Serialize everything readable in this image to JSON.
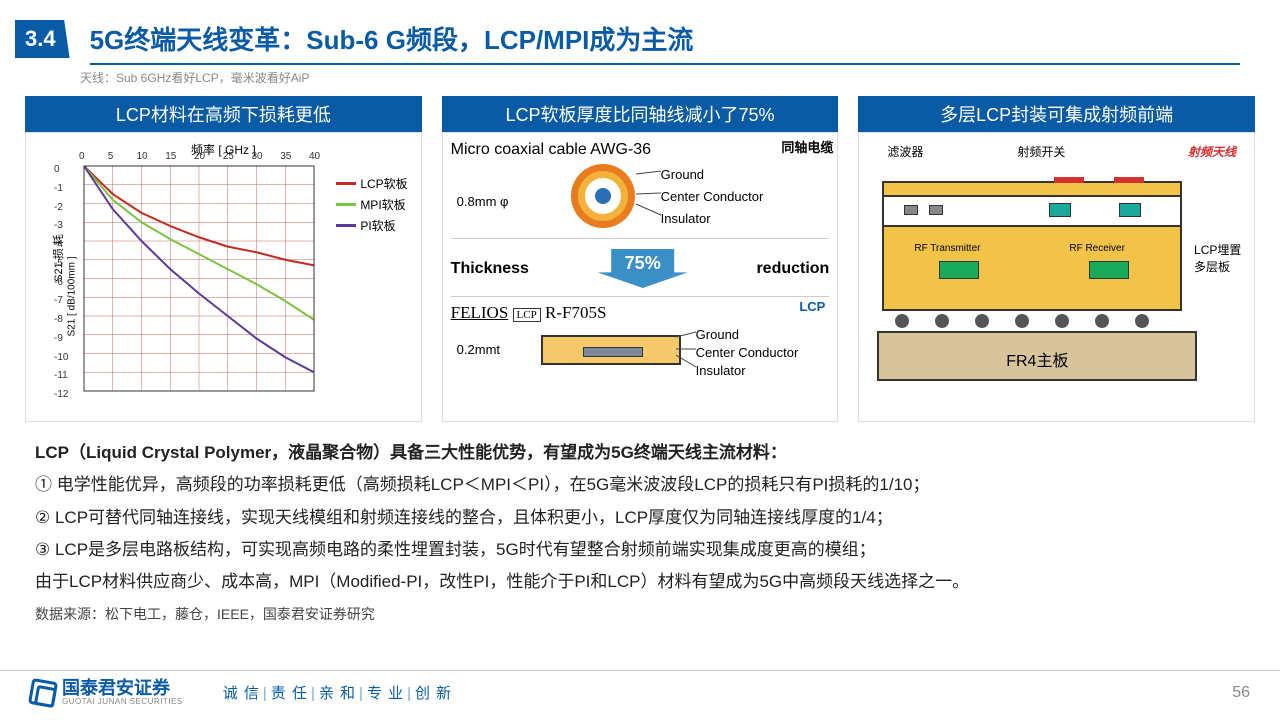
{
  "header": {
    "section_number": "3.4",
    "title": "5G终端天线变革：Sub-6 G频段，LCP/MPI成为主流",
    "subtitle": "天线：Sub 6GHz看好LCP，毫米波看好AiP"
  },
  "panels": {
    "left": {
      "heading": "LCP材料在高频下损耗更低",
      "chart": {
        "type": "line",
        "x_label": "频率  [ GHz ]",
        "y_label": "S21 损 耗",
        "y_unit": "S21 [ dB/100mm ]",
        "xlim": [
          0,
          40
        ],
        "xtick_step": 5,
        "ylim": [
          -12,
          0
        ],
        "ytick_step": 1,
        "grid_color": "#c96a6a",
        "background": "#ffffff",
        "series": [
          {
            "name": "LCP软板",
            "color": "#c4281e",
            "width": 2,
            "points": [
              [
                0,
                0
              ],
              [
                5,
                -1.5
              ],
              [
                10,
                -2.5
              ],
              [
                15,
                -3.2
              ],
              [
                20,
                -3.8
              ],
              [
                25,
                -4.3
              ],
              [
                30,
                -4.6
              ],
              [
                35,
                -5.0
              ],
              [
                40,
                -5.3
              ]
            ]
          },
          {
            "name": "MPI软板",
            "color": "#7cc243",
            "width": 2,
            "points": [
              [
                0,
                0
              ],
              [
                5,
                -1.8
              ],
              [
                10,
                -3.0
              ],
              [
                15,
                -3.9
              ],
              [
                20,
                -4.7
              ],
              [
                25,
                -5.5
              ],
              [
                30,
                -6.3
              ],
              [
                35,
                -7.2
              ],
              [
                40,
                -8.2
              ]
            ]
          },
          {
            "name": "PI软板",
            "color": "#5b3a9b",
            "width": 2,
            "points": [
              [
                0,
                0
              ],
              [
                5,
                -2.3
              ],
              [
                10,
                -4.0
              ],
              [
                15,
                -5.5
              ],
              [
                20,
                -6.8
              ],
              [
                25,
                -8.0
              ],
              [
                30,
                -9.2
              ],
              [
                35,
                -10.2
              ],
              [
                40,
                -11.0
              ]
            ]
          }
        ]
      }
    },
    "mid": {
      "heading": "LCP软板厚度比同轴线减小了75%",
      "top_title": "Micro coaxial cable AWG-36",
      "top_badge": "同轴电缆",
      "dim_top": "0.8mm φ",
      "labels_top": [
        "Ground",
        "Center Conductor",
        "Insulator"
      ],
      "coax_colors": {
        "outer": "#e97c1e",
        "ring": "#f3b23a",
        "insul": "#ffffff",
        "core": "#2a6fb5"
      },
      "thickness_word": "Thickness",
      "reduction_word": "reduction",
      "percent": "75%",
      "arrow_color": "#3a8fc7",
      "brand": "FELIOS",
      "brand_tag": "LCP",
      "model": "R-F705S",
      "bottom_badge": "LCP",
      "dim_bottom": "0.2mmt",
      "labels_bottom": [
        "Ground",
        "Center Conductor",
        "Insulator"
      ],
      "flat_colors": {
        "body": "#f5c869",
        "core": "#7a8a99"
      }
    },
    "right": {
      "heading": "多层LCP封装可集成射频前端",
      "labels": {
        "filter": "滤波器",
        "switch": "射频开关",
        "antenna": "射频天线",
        "tx": "RF Transmitter",
        "rx": "RF Receiver",
        "lcp": "LCP埋置多层板",
        "fr4": "FR4主板"
      },
      "colors": {
        "lcp_board": "#f1c448",
        "chip_green": "#1aa85a",
        "chip_teal": "#1aa89a",
        "fr4": "#d8c49a",
        "border": "#222",
        "ant": "#d62f2f"
      }
    }
  },
  "body": {
    "lead": "LCP（Liquid Crystal Polymer，液晶聚合物）具备三大性能优势，有望成为5G终端天线主流材料：",
    "l1": "① 电学性能优异，高频段的功率损耗更低（高频损耗LCP＜MPI＜PI），在5G毫米波波段LCP的损耗只有PI损耗的1/10；",
    "l2": "② LCP可替代同轴连接线，实现天线模组和射频连接线的整合，且体积更小，LCP厚度仅为同轴连接线厚度的1/4；",
    "l3": "③ LCP是多层电路板结构，可实现高频电路的柔性埋置封装，5G时代有望整合射频前端实现集成度更高的模组；",
    "l4": "由于LCP材料供应商少、成本高，MPI（Modified-PI，改性PI，性能介于PI和LCP）材料有望成为5G中高频段天线选择之一。"
  },
  "source": "数据来源：松下电工，藤仓，IEEE，国泰君安证券研究",
  "footer": {
    "company_cn": "国泰君安证券",
    "company_en": "GUOTAI JUNAN SECURITIES",
    "values": [
      "诚 信",
      "责 任",
      "亲 和",
      "专 业",
      "创 新"
    ],
    "page": "56"
  }
}
